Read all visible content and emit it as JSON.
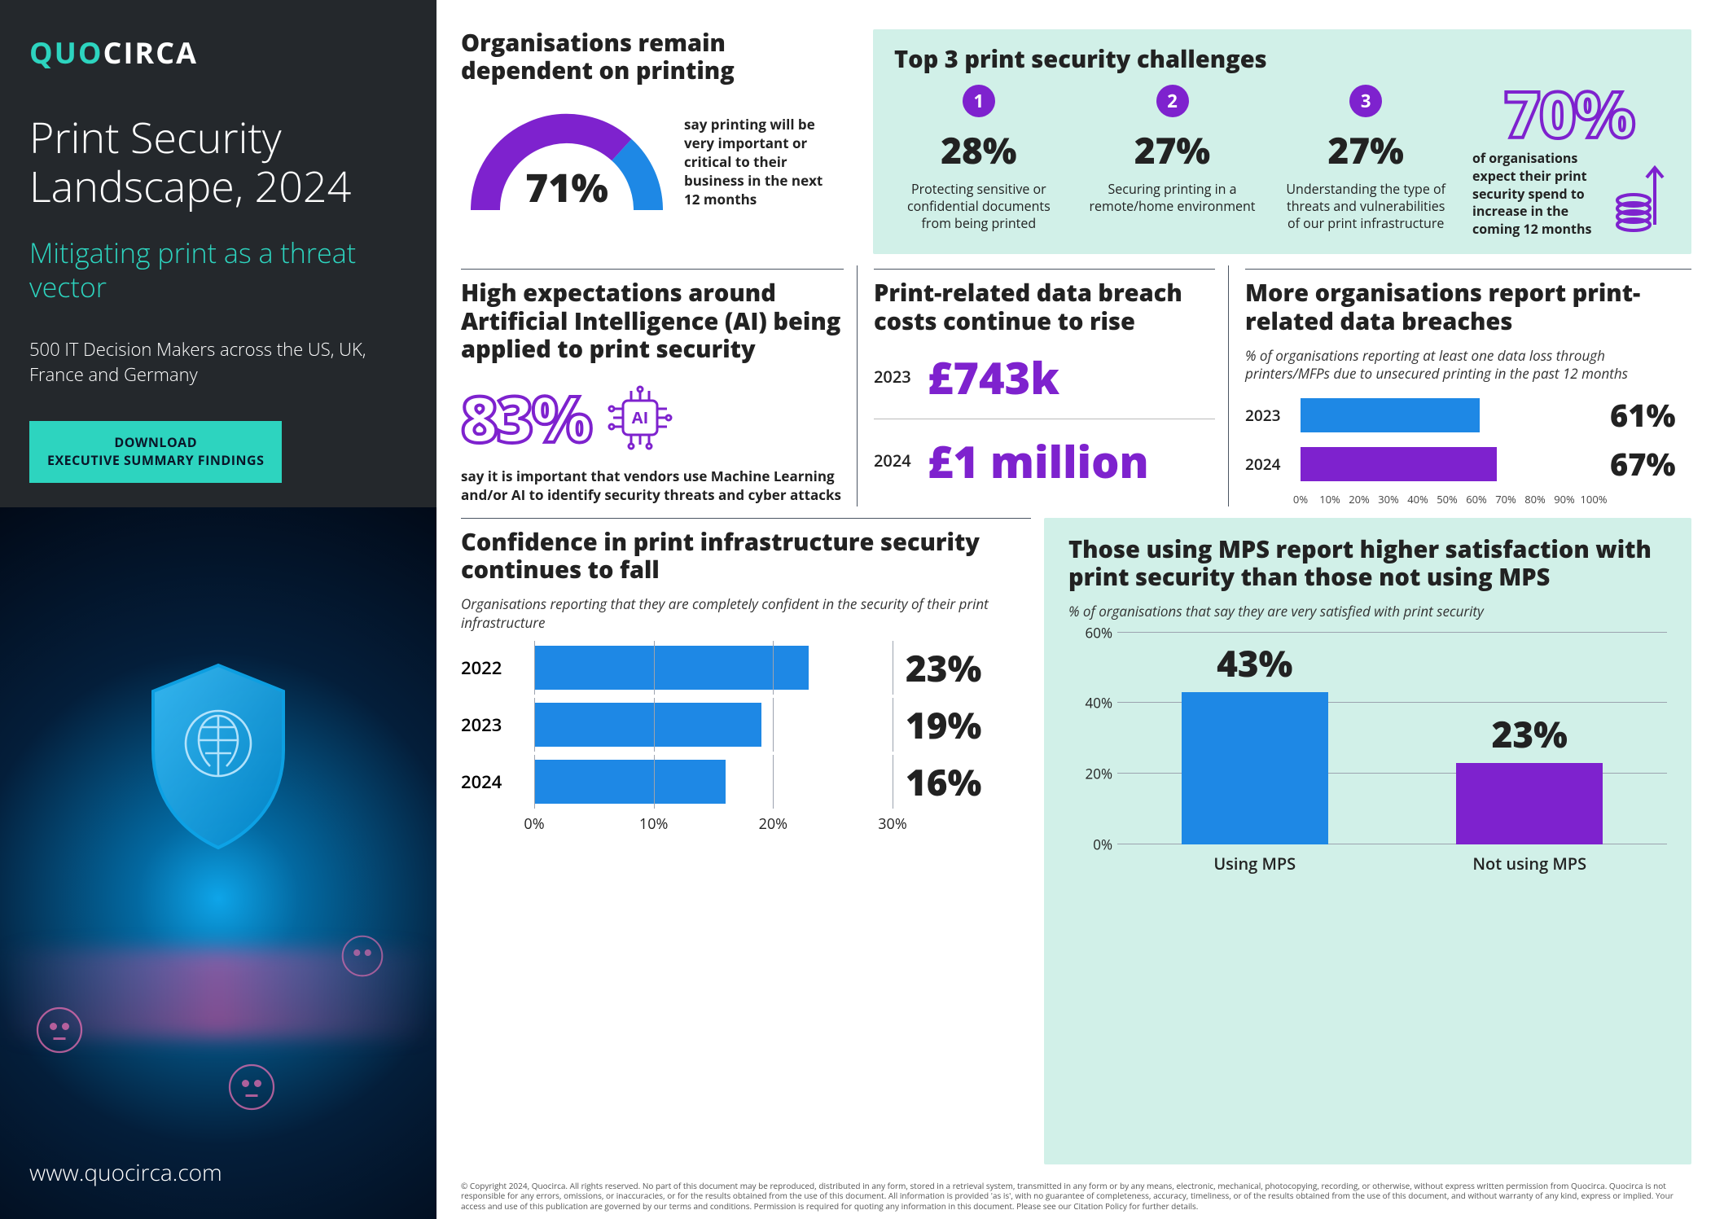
{
  "brand": {
    "part1": "QUO",
    "part2": "CIRCA"
  },
  "title": "Print Security Landscape, 2024",
  "subtitle": "Mitigating print as a threat vector",
  "respondents": "500 IT Decision Makers across the US, UK, France and Germany",
  "download_label": "DOWNLOAD\nEXECUTIVE SUMMARY FINDINGS",
  "website": "www.quocirca.com",
  "colors": {
    "teal": "#2dd4bf",
    "mint": "#d1f0e8",
    "purple": "#7e22ce",
    "blue": "#1e88e5",
    "dark": "#222222"
  },
  "gauge": {
    "title": "Organisations remain dependent on printing",
    "value": 71,
    "label": "71%",
    "desc": "say printing will be very important or critical to their business in the next 12 months",
    "color_primary": "#7e22ce",
    "color_secondary": "#1e88e5"
  },
  "top3": {
    "title": "Top 3 print security challenges",
    "items": [
      {
        "n": "1",
        "pct": "28%",
        "desc": "Protecting sensitive or confidential documents from being printed"
      },
      {
        "n": "2",
        "pct": "27%",
        "desc": "Securing printing in a remote/home environment"
      },
      {
        "n": "3",
        "pct": "27%",
        "desc": "Understanding the type of threats and vulnerabilities of our print infrastructure"
      }
    ],
    "feature": {
      "pct": "70%",
      "desc": "of organisations expect their print security spend to increase in the coming 12 months"
    }
  },
  "ai": {
    "title": "High expectations around Artificial Intelligence (AI) being applied to print security",
    "pct": "83%",
    "desc": "say it is important that vendors use Machine Learning and/or AI to identify security threats and cyber attacks"
  },
  "costs": {
    "title": "Print-related data breach costs continue to rise",
    "rows": [
      {
        "year": "2023",
        "value": "£743k",
        "color": "#7e22ce"
      },
      {
        "year": "2024",
        "value": "£1 million",
        "color": "#7e22ce"
      }
    ]
  },
  "breach": {
    "title": "More organisations report print-related data breaches",
    "subtitle": "% of organisations reporting at least one data loss through printers/MFPs due to unsecured printing in the past 12 months",
    "max": 100,
    "ticks": [
      "0%",
      "10%",
      "20%",
      "30%",
      "40%",
      "50%",
      "60%",
      "70%",
      "80%",
      "90%",
      "100%"
    ],
    "rows": [
      {
        "label": "2023",
        "value": 61,
        "display": "61%",
        "color": "#1e88e5"
      },
      {
        "label": "2024",
        "value": 67,
        "display": "67%",
        "color": "#7e22ce"
      }
    ]
  },
  "confidence": {
    "title": "Confidence in print infrastructure security continues to fall",
    "subtitle": "Organisations reporting that they are completely confident in the security of their print infrastructure",
    "max": 30,
    "ticks": [
      "0%",
      "10%",
      "20%",
      "30%"
    ],
    "rows": [
      {
        "label": "2022",
        "value": 23,
        "display": "23%",
        "color": "#1e88e5"
      },
      {
        "label": "2023",
        "value": 19,
        "display": "19%",
        "color": "#1e88e5"
      },
      {
        "label": "2024",
        "value": 16,
        "display": "16%",
        "color": "#1e88e5"
      }
    ]
  },
  "mps": {
    "title": "Those using MPS report higher satisfaction with print security than those not using MPS",
    "subtitle": "% of organisations that say they are very satisfied with print security",
    "ymax": 60,
    "yticks": [
      0,
      20,
      40,
      60
    ],
    "bars": [
      {
        "label": "Using MPS",
        "value": 43,
        "display": "43%",
        "color": "#1e88e5"
      },
      {
        "label": "Not using MPS",
        "value": 23,
        "display": "23%",
        "color": "#7e22ce"
      }
    ]
  },
  "copyright": "© Copyright 2024, Quocirca. All rights reserved. No part of this document may be reproduced, distributed in any form, stored in a retrieval system, transmitted in any form or by any means, electronic, mechanical, photocopying, recording, or otherwise, without express written permission from Quocirca. Quocirca is not responsible for any errors, omissions, or inaccuracies, or for the results obtained from the use of this document. All information is provided 'as is', with no guarantee of completeness, accuracy, timeliness, or of the results obtained from the use of this document, and without warranty of any kind, express or implied. Your access and use of this publication are governed by our terms and conditions. Permission is required for quoting any information in this document. Please see our Citation Policy for further details."
}
